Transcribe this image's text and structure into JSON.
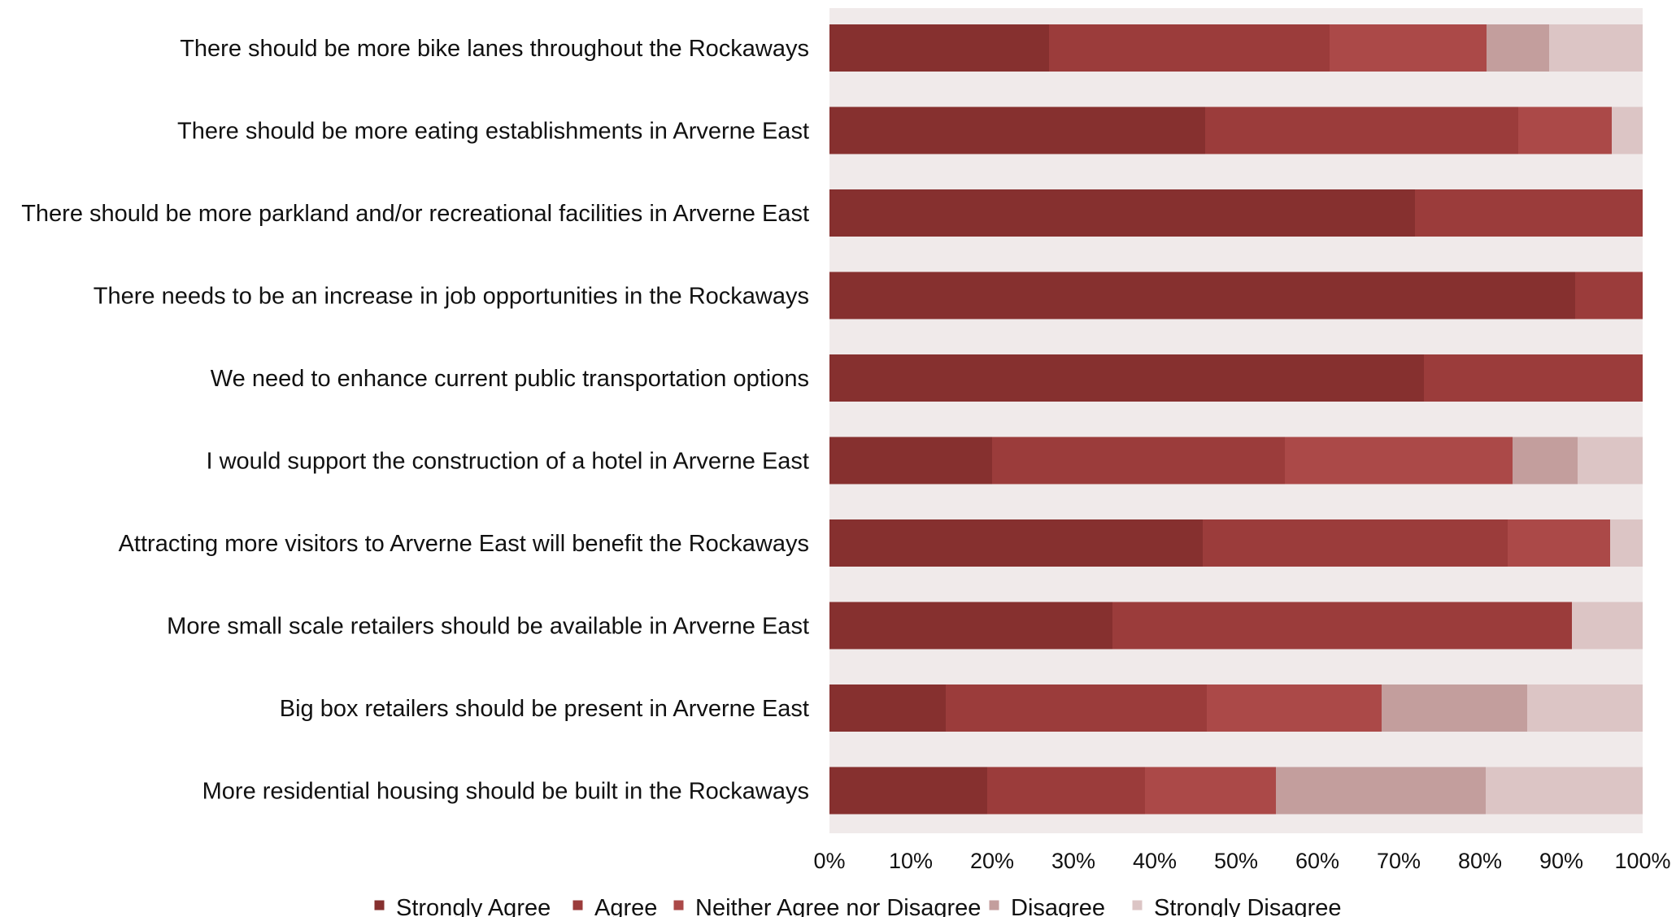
{
  "chart_data": {
    "type": "bar",
    "orientation": "horizontal",
    "stacked": "100%",
    "categories": [
      "There should be more bike lanes throughout the Rockaways",
      "There should be more eating establishments in Arverne East",
      "There should be more parkland and/or recreational facilities in Arverne East",
      "There needs to be an increase in job opportunities in the Rockaways",
      "We need to enhance current public transportation options",
      "I would support the construction of a hotel in Arverne East",
      "Attracting more visitors to Arverne East will benefit the Rockaways",
      "More small scale retailers should be available in Arverne East",
      "Big box retailers should be present in Arverne East",
      "More residential housing should be built in the Rockaways"
    ],
    "series": [
      {
        "name": "Strongly Agree",
        "color": "#86302F",
        "values": [
          27,
          46.2,
          72,
          91.7,
          73.1,
          20,
          45.9,
          34.8,
          14.3,
          19.4
        ]
      },
      {
        "name": "Agree",
        "color": "#9B3C3B",
        "values": [
          34.5,
          38.5,
          28,
          8.3,
          26.9,
          36,
          37.5,
          56.5,
          32.1,
          19.4
        ]
      },
      {
        "name": "Neither Agree nor Disagree",
        "color": "#AB4948",
        "values": [
          19.3,
          11.5,
          0,
          0,
          0,
          28,
          12.6,
          0,
          21.5,
          16.1
        ]
      },
      {
        "name": "Disagree",
        "color": "#C39E9D",
        "values": [
          7.7,
          0,
          0,
          0,
          0,
          8,
          0,
          0,
          17.9,
          25.8
        ]
      },
      {
        "name": "Strongly Disagree",
        "color": "#DCC5C5",
        "values": [
          11.5,
          3.8,
          0,
          0,
          0,
          8,
          4,
          8.7,
          14.2,
          19.3
        ]
      }
    ],
    "x_ticks": [
      "0%",
      "10%",
      "20%",
      "30%",
      "40%",
      "50%",
      "60%",
      "70%",
      "80%",
      "90%",
      "100%"
    ],
    "xlim": [
      0,
      100
    ],
    "title": "",
    "xlabel": "",
    "ylabel": "",
    "legend_position": "bottom",
    "plot_background": "#F0EAEA",
    "grid": false
  }
}
